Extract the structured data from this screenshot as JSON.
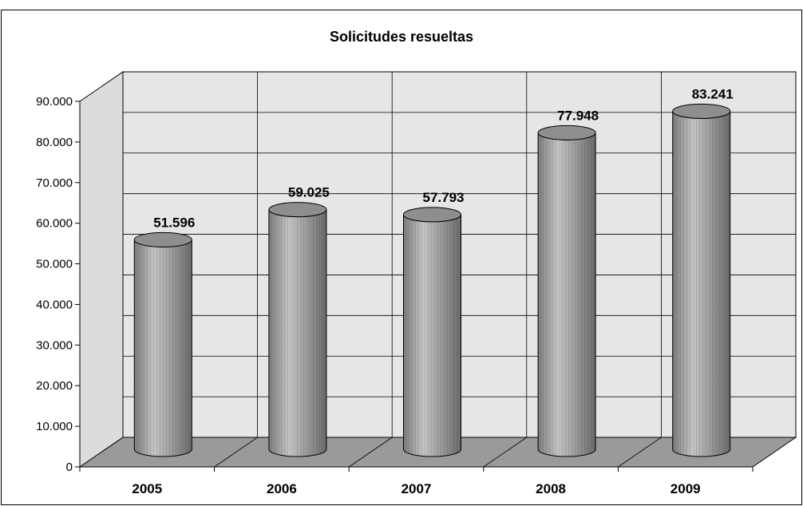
{
  "chart_data": {
    "type": "bar",
    "title": "Solicitudes resueltas",
    "categories": [
      "2005",
      "2006",
      "2007",
      "2008",
      "2009"
    ],
    "values": [
      51596,
      59025,
      57793,
      77948,
      83241
    ],
    "value_labels": [
      "51.596",
      "59.025",
      "57.793",
      "77.948",
      "83.241"
    ],
    "ylim": [
      0,
      90000
    ],
    "yticks": [
      0,
      10000,
      20000,
      30000,
      40000,
      50000,
      60000,
      70000,
      80000,
      90000
    ],
    "ytick_labels": [
      "0",
      "10.000",
      "20.000",
      "30.000",
      "40.000",
      "50.000",
      "60.000",
      "70.000",
      "80.000",
      "90.000"
    ],
    "grid": true,
    "style": "3d-cylinder",
    "colors": {
      "bar": "#a8a8a8",
      "wall": "#e6e6e6",
      "floor": "#9a9a9a"
    }
  }
}
